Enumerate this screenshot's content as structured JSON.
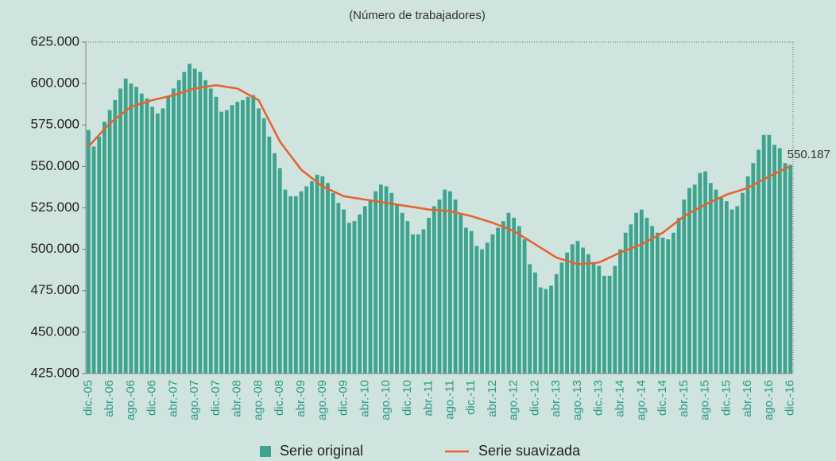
{
  "chart_data": {
    "type": "bar_line",
    "subtitle": "(Número de trabajadores)",
    "categories": [
      "dic.-05",
      null,
      null,
      null,
      "abr.-06",
      null,
      null,
      null,
      "ago.-06",
      null,
      null,
      null,
      "dic.-06",
      null,
      null,
      null,
      "abr.-07",
      null,
      null,
      null,
      "ago.-07",
      null,
      null,
      null,
      "dic.-07",
      null,
      null,
      null,
      "abr.-08",
      null,
      null,
      null,
      "ago.-08",
      null,
      null,
      null,
      "dic.-08",
      null,
      null,
      null,
      "abr.-09",
      null,
      null,
      null,
      "ago.-09",
      null,
      null,
      null,
      "dic.-09",
      null,
      null,
      null,
      "abr.-10",
      null,
      null,
      null,
      "ago.-10",
      null,
      null,
      null,
      "dic.-10",
      null,
      null,
      null,
      "abr.-11",
      null,
      null,
      null,
      "ago.-11",
      null,
      null,
      null,
      "dic.-11",
      null,
      null,
      null,
      "abr.-12",
      null,
      null,
      null,
      "ago.-12",
      null,
      null,
      null,
      "dic.-12",
      null,
      null,
      null,
      "abr.-13",
      null,
      null,
      null,
      "ago.-13",
      null,
      null,
      null,
      "dic.-13",
      null,
      null,
      null,
      "abr.-14",
      null,
      null,
      null,
      "ago.-14",
      null,
      null,
      null,
      "dic.-14",
      null,
      null,
      null,
      "abr.-15",
      null,
      null,
      null,
      "ago.-15",
      null,
      null,
      null,
      "dic.-15",
      null,
      null,
      null,
      "abr.-16",
      null,
      null,
      null,
      "ago.-16",
      null,
      null,
      null,
      "dic.-16"
    ],
    "series": [
      {
        "name": "Serie original",
        "kind": "bar",
        "color": "#3fa48f",
        "values": [
          572000,
          562000,
          568000,
          577000,
          584000,
          590000,
          597000,
          603000,
          600000,
          598000,
          594000,
          591000,
          586000,
          582000,
          585000,
          592000,
          597000,
          602000,
          607000,
          612000,
          609000,
          607000,
          602000,
          597000,
          592000,
          583000,
          584000,
          587000,
          589000,
          590000,
          592000,
          593000,
          585000,
          579000,
          568000,
          558000,
          549000,
          536000,
          532000,
          532000,
          535000,
          538000,
          541000,
          545000,
          544000,
          540000,
          534000,
          528000,
          524000,
          516000,
          517000,
          521000,
          526000,
          530000,
          535000,
          539000,
          538000,
          534000,
          527000,
          522000,
          517000,
          509000,
          509000,
          512000,
          519000,
          526000,
          530000,
          536000,
          535000,
          530000,
          521000,
          513000,
          511000,
          502000,
          500000,
          504000,
          509000,
          513000,
          517000,
          522000,
          519000,
          514000,
          506000,
          491000,
          486000,
          477000,
          476000,
          478000,
          485000,
          492000,
          498000,
          503000,
          505000,
          501000,
          497000,
          492000,
          490000,
          484000,
          484000,
          490000,
          500000,
          510000,
          515000,
          522000,
          524000,
          519000,
          514000,
          510000,
          507000,
          506000,
          510000,
          519000,
          530000,
          537000,
          539000,
          546000,
          547000,
          540000,
          536000,
          531000,
          529000,
          524000,
          526000,
          534000,
          544000,
          552000,
          560000,
          569000,
          569000,
          563000,
          561000,
          552000,
          551000
        ]
      },
      {
        "name": "Serie suavizada",
        "kind": "line",
        "color": "#e8612c",
        "last_label": "550.187",
        "values": [
          562000,
          565500,
          569000,
          572500,
          576000,
          578500,
          581000,
          583500,
          586000,
          587000,
          588000,
          589000,
          590000,
          590750,
          591500,
          592250,
          593000,
          594000,
          595000,
          596000,
          597000,
          597500,
          598000,
          598500,
          599000,
          598500,
          598000,
          597500,
          597000,
          595250,
          593500,
          591750,
          590000,
          583750,
          577500,
          571250,
          565000,
          560750,
          556500,
          552250,
          548000,
          545500,
          543000,
          540500,
          538000,
          536500,
          535000,
          533500,
          532000,
          531500,
          531000,
          530500,
          530000,
          529500,
          529000,
          528500,
          528000,
          527500,
          527000,
          526500,
          526000,
          525500,
          525000,
          524500,
          524000,
          523750,
          523500,
          523250,
          523000,
          522250,
          521500,
          520750,
          520000,
          519000,
          518000,
          517000,
          516000,
          514750,
          513500,
          512250,
          511000,
          509000,
          507000,
          505000,
          503000,
          501000,
          499000,
          497000,
          495000,
          494000,
          493000,
          492000,
          491000,
          491250,
          491500,
          491750,
          492000,
          493500,
          495000,
          496500,
          498000,
          499250,
          500500,
          501750,
          503000,
          504750,
          506500,
          508250,
          510000,
          512500,
          515000,
          517500,
          520000,
          521750,
          523500,
          525250,
          527000,
          528500,
          530000,
          531500,
          533000,
          534000,
          535000,
          536000,
          537000,
          538750,
          540500,
          542250,
          544000,
          545500,
          547100,
          548600,
          550187
        ]
      }
    ],
    "ylim": [
      425000,
      625000
    ],
    "yticks": [
      {
        "value": 425000,
        "label": "425.000"
      },
      {
        "value": 450000,
        "label": "450.000"
      },
      {
        "value": 475000,
        "label": "475.000"
      },
      {
        "value": 500000,
        "label": "500.000"
      },
      {
        "value": 525000,
        "label": "525.000"
      },
      {
        "value": 550000,
        "label": "550.000"
      },
      {
        "value": 575000,
        "label": "575.000"
      },
      {
        "value": 600000,
        "label": "600.000"
      },
      {
        "value": 625000,
        "label": "625.000"
      }
    ],
    "grid": false,
    "legend": "bottom"
  }
}
